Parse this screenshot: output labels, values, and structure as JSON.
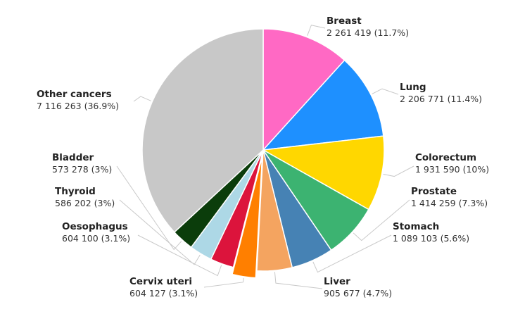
{
  "chart_data": {
    "type": "pie",
    "title": "",
    "slices": [
      {
        "label": "Breast",
        "value": 2261419,
        "value_text": "2 261 419 (11.7%)",
        "percent": 11.7,
        "color": "#ff69c4"
      },
      {
        "label": "Lung",
        "value": 2206771,
        "value_text": "2 206 771 (11.4%)",
        "percent": 11.4,
        "color": "#1e90ff"
      },
      {
        "label": "Colorectum",
        "value": 1931590,
        "value_text": "1 931 590 (10%)",
        "percent": 10,
        "color": "#ffd700"
      },
      {
        "label": "Prostate",
        "value": 1414259,
        "value_text": "1 414 259 (7.3%)",
        "percent": 7.3,
        "color": "#3cb371"
      },
      {
        "label": "Stomach",
        "value": 1089103,
        "value_text": "1 089 103 (5.6%)",
        "percent": 5.6,
        "color": "#4682b4"
      },
      {
        "label": "Liver",
        "value": 905677,
        "value_text": "905 677 (4.7%)",
        "percent": 4.7,
        "color": "#f4a460"
      },
      {
        "label": "Cervix uteri",
        "value": 604127,
        "value_text": "604 127 (3.1%)",
        "percent": 3.1,
        "color": "#ff7f00",
        "exploded": true
      },
      {
        "label": "Oesophagus",
        "value": 604100,
        "value_text": "604 100 (3.1%)",
        "percent": 3.1,
        "color": "#dc143c"
      },
      {
        "label": "Thyroid",
        "value": 586202,
        "value_text": "586 202 (3%)",
        "percent": 3,
        "color": "#add8e6"
      },
      {
        "label": "Bladder",
        "value": 573278,
        "value_text": "573 278 (3%)",
        "percent": 3,
        "color": "#0b3d0b"
      },
      {
        "label": "Other cancers",
        "value": 7116263,
        "value_text": "7 116 263 (36.9%)",
        "percent": 36.9,
        "color": "#c8c8c8"
      }
    ],
    "legend": "none",
    "labels": "outside with leader lines"
  }
}
